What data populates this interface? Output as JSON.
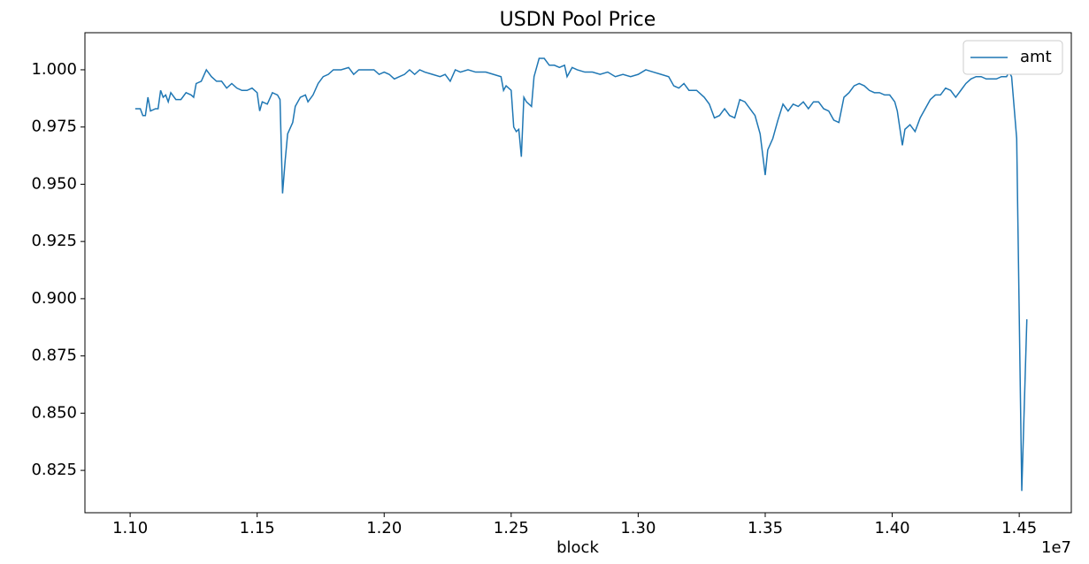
{
  "chart_data": {
    "type": "line",
    "title": "USDN Pool Price",
    "x_label": "block",
    "x_offset_label": "1e7",
    "x": [
      1.102,
      1.104,
      1.105,
      1.106,
      1.107,
      1.108,
      1.11,
      1.111,
      1.112,
      1.113,
      1.114,
      1.115,
      1.116,
      1.118,
      1.12,
      1.122,
      1.124,
      1.125,
      1.126,
      1.128,
      1.13,
      1.132,
      1.134,
      1.136,
      1.138,
      1.14,
      1.142,
      1.144,
      1.146,
      1.148,
      1.15,
      1.151,
      1.152,
      1.154,
      1.156,
      1.158,
      1.159,
      1.16,
      1.161,
      1.162,
      1.164,
      1.165,
      1.167,
      1.169,
      1.17,
      1.172,
      1.174,
      1.176,
      1.178,
      1.18,
      1.183,
      1.186,
      1.188,
      1.19,
      1.193,
      1.196,
      1.198,
      1.2,
      1.202,
      1.204,
      1.206,
      1.208,
      1.21,
      1.212,
      1.214,
      1.216,
      1.219,
      1.222,
      1.224,
      1.226,
      1.228,
      1.23,
      1.233,
      1.236,
      1.24,
      1.243,
      1.246,
      1.247,
      1.248,
      1.25,
      1.251,
      1.252,
      1.253,
      1.254,
      1.255,
      1.256,
      1.258,
      1.259,
      1.261,
      1.263,
      1.265,
      1.267,
      1.269,
      1.271,
      1.272,
      1.274,
      1.276,
      1.279,
      1.282,
      1.285,
      1.288,
      1.291,
      1.294,
      1.297,
      1.3,
      1.303,
      1.306,
      1.309,
      1.312,
      1.314,
      1.316,
      1.318,
      1.32,
      1.323,
      1.326,
      1.328,
      1.33,
      1.332,
      1.334,
      1.336,
      1.338,
      1.34,
      1.342,
      1.344,
      1.346,
      1.348,
      1.35,
      1.351,
      1.353,
      1.355,
      1.357,
      1.359,
      1.361,
      1.363,
      1.365,
      1.367,
      1.369,
      1.371,
      1.373,
      1.375,
      1.377,
      1.379,
      1.381,
      1.383,
      1.385,
      1.387,
      1.389,
      1.391,
      1.393,
      1.395,
      1.397,
      1.399,
      1.401,
      1.402,
      1.404,
      1.405,
      1.407,
      1.409,
      1.411,
      1.413,
      1.415,
      1.417,
      1.419,
      1.421,
      1.423,
      1.425,
      1.427,
      1.429,
      1.431,
      1.433,
      1.435,
      1.437,
      1.439,
      1.441,
      1.443,
      1.445,
      1.446,
      1.447,
      1.449,
      1.451,
      1.453
    ],
    "series": [
      {
        "name": "amt",
        "color": "#1f77b4",
        "values": [
          0.983,
          0.983,
          0.98,
          0.98,
          0.988,
          0.982,
          0.983,
          0.983,
          0.991,
          0.988,
          0.989,
          0.986,
          0.99,
          0.987,
          0.987,
          0.99,
          0.989,
          0.988,
          0.994,
          0.995,
          1.0,
          0.997,
          0.995,
          0.995,
          0.992,
          0.994,
          0.992,
          0.991,
          0.991,
          0.992,
          0.99,
          0.982,
          0.986,
          0.985,
          0.99,
          0.989,
          0.987,
          0.946,
          0.96,
          0.972,
          0.977,
          0.984,
          0.988,
          0.989,
          0.986,
          0.989,
          0.994,
          0.997,
          0.998,
          1.0,
          1.0,
          1.001,
          0.998,
          1.0,
          1.0,
          1.0,
          0.998,
          0.999,
          0.998,
          0.996,
          0.997,
          0.998,
          1.0,
          0.998,
          1.0,
          0.999,
          0.998,
          0.997,
          0.998,
          0.995,
          1.0,
          0.999,
          1.0,
          0.999,
          0.999,
          0.998,
          0.997,
          0.991,
          0.993,
          0.991,
          0.975,
          0.973,
          0.974,
          0.962,
          0.988,
          0.986,
          0.984,
          0.997,
          1.005,
          1.005,
          1.002,
          1.002,
          1.001,
          1.002,
          0.997,
          1.001,
          1.0,
          0.999,
          0.999,
          0.998,
          0.999,
          0.997,
          0.998,
          0.997,
          0.998,
          1.0,
          0.999,
          0.998,
          0.997,
          0.993,
          0.992,
          0.994,
          0.991,
          0.991,
          0.988,
          0.985,
          0.979,
          0.98,
          0.983,
          0.98,
          0.979,
          0.987,
          0.986,
          0.983,
          0.98,
          0.972,
          0.954,
          0.965,
          0.97,
          0.978,
          0.985,
          0.982,
          0.985,
          0.984,
          0.986,
          0.983,
          0.986,
          0.986,
          0.983,
          0.982,
          0.978,
          0.977,
          0.988,
          0.99,
          0.993,
          0.994,
          0.993,
          0.991,
          0.99,
          0.99,
          0.989,
          0.989,
          0.986,
          0.982,
          0.967,
          0.974,
          0.976,
          0.973,
          0.979,
          0.983,
          0.987,
          0.989,
          0.989,
          0.992,
          0.991,
          0.988,
          0.991,
          0.994,
          0.996,
          0.997,
          0.997,
          0.996,
          0.996,
          0.996,
          0.997,
          0.997,
          0.999,
          0.997,
          0.97,
          0.816,
          0.891
        ]
      }
    ],
    "xlim": [
      1.0822,
      1.4705
    ],
    "ylim": [
      0.8065,
      1.0162
    ],
    "xticks": [
      {
        "value": 1.1,
        "label": "1.10"
      },
      {
        "value": 1.15,
        "label": "1.15"
      },
      {
        "value": 1.2,
        "label": "1.20"
      },
      {
        "value": 1.25,
        "label": "1.25"
      },
      {
        "value": 1.3,
        "label": "1.30"
      },
      {
        "value": 1.35,
        "label": "1.35"
      },
      {
        "value": 1.4,
        "label": "1.40"
      },
      {
        "value": 1.45,
        "label": "1.45"
      }
    ],
    "yticks": [
      {
        "value": 0.825,
        "label": "0.825"
      },
      {
        "value": 0.85,
        "label": "0.850"
      },
      {
        "value": 0.875,
        "label": "0.875"
      },
      {
        "value": 0.9,
        "label": "0.900"
      },
      {
        "value": 0.925,
        "label": "0.925"
      },
      {
        "value": 0.95,
        "label": "0.950"
      },
      {
        "value": 0.975,
        "label": "0.975"
      },
      {
        "value": 1.0,
        "label": "1.000"
      }
    ],
    "grid": false,
    "legend": "upper-right"
  }
}
